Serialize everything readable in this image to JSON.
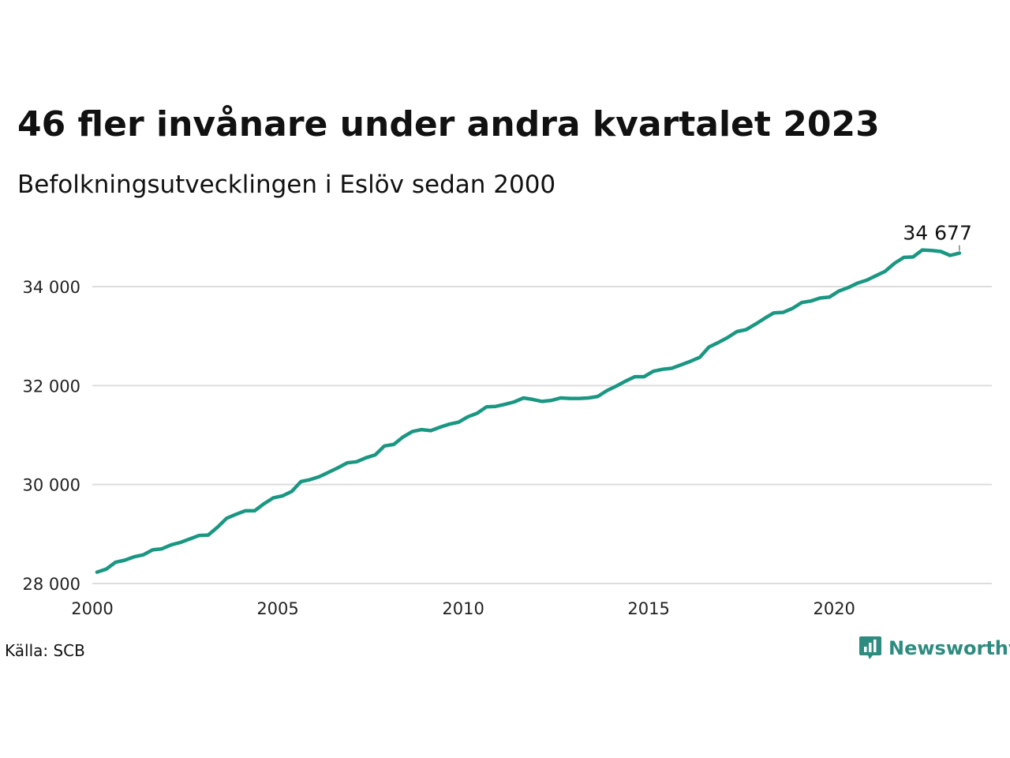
{
  "title": "46 fler invånare under andra kvartalet 2023",
  "subtitle": "Befolkningsutvecklingen i Eslöv sedan 2000",
  "source": "Källa: SCB",
  "brand": {
    "name": "Newsworthy",
    "icon": "bar-chart-icon",
    "color": "#2e8b7f"
  },
  "chart_data": {
    "type": "line",
    "title": "46 fler invånare under andra kvartalet 2023",
    "subtitle": "Befolkningsutvecklingen i Eslöv sedan 2000",
    "xlabel": "",
    "ylabel": "",
    "xlim": [
      2000,
      2024.25
    ],
    "ylim": [
      28000,
      35200
    ],
    "grid": true,
    "line_color": "#1a9782",
    "x_ticks": [
      2000,
      2005,
      2010,
      2015,
      2020
    ],
    "y_ticks": [
      28000,
      30000,
      32000,
      34000
    ],
    "y_tick_labels": [
      "28 000",
      "30 000",
      "32 000",
      "34 000"
    ],
    "end_label": "34 677",
    "x": [
      2000.125,
      2000.375,
      2000.625,
      2000.875,
      2001.125,
      2001.375,
      2001.625,
      2001.875,
      2002.125,
      2002.375,
      2002.625,
      2002.875,
      2003.125,
      2003.375,
      2003.625,
      2003.875,
      2004.125,
      2004.375,
      2004.625,
      2004.875,
      2005.125,
      2005.375,
      2005.625,
      2005.875,
      2006.125,
      2006.375,
      2006.625,
      2006.875,
      2007.125,
      2007.375,
      2007.625,
      2007.875,
      2008.125,
      2008.375,
      2008.625,
      2008.875,
      2009.125,
      2009.375,
      2009.625,
      2009.875,
      2010.125,
      2010.375,
      2010.625,
      2010.875,
      2011.125,
      2011.375,
      2011.625,
      2011.875,
      2012.125,
      2012.375,
      2012.625,
      2012.875,
      2013.125,
      2013.375,
      2013.625,
      2013.875,
      2014.125,
      2014.375,
      2014.625,
      2014.875,
      2015.125,
      2015.375,
      2015.625,
      2015.875,
      2016.125,
      2016.375,
      2016.625,
      2016.875,
      2017.125,
      2017.375,
      2017.625,
      2017.875,
      2018.125,
      2018.375,
      2018.625,
      2018.875,
      2019.125,
      2019.375,
      2019.625,
      2019.875,
      2020.125,
      2020.375,
      2020.625,
      2020.875,
      2021.125,
      2021.375,
      2021.625,
      2021.875,
      2022.125,
      2022.375,
      2022.625,
      2022.875,
      2023.125,
      2023.375
    ],
    "values": [
      28230,
      28290,
      28430,
      28470,
      28540,
      28580,
      28680,
      28700,
      28780,
      28830,
      28900,
      28970,
      28980,
      29140,
      29320,
      29400,
      29470,
      29470,
      29610,
      29730,
      29770,
      29860,
      30060,
      30100,
      30160,
      30250,
      30340,
      30440,
      30460,
      30540,
      30600,
      30780,
      30810,
      30960,
      31070,
      31110,
      31090,
      31160,
      31220,
      31260,
      31370,
      31440,
      31570,
      31580,
      31620,
      31670,
      31750,
      31720,
      31680,
      31700,
      31750,
      31740,
      31740,
      31750,
      31780,
      31900,
      31990,
      32090,
      32180,
      32180,
      32290,
      32330,
      32350,
      32420,
      32490,
      32570,
      32780,
      32870,
      32970,
      33090,
      33130,
      33240,
      33360,
      33470,
      33480,
      33560,
      33680,
      33710,
      33770,
      33790,
      33910,
      33980,
      34070,
      34130,
      34220,
      34310,
      34470,
      34590,
      34600,
      34740,
      34730,
      34710,
      34631,
      34677
    ]
  }
}
